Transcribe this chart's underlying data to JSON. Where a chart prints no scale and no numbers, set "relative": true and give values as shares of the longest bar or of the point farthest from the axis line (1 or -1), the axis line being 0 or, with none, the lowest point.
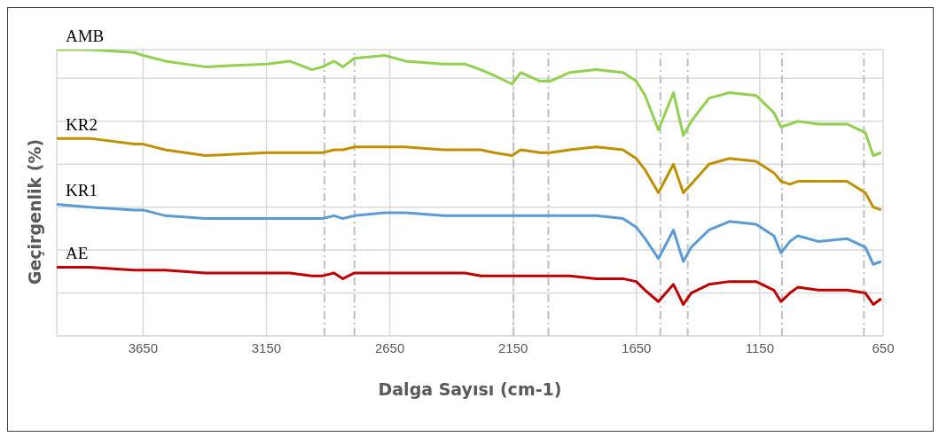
{
  "chart_data": {
    "type": "line",
    "xlabel": "Dalga Sayısı (cm-1)",
    "ylabel": "Geçirgenlik (%)",
    "relative": true,
    "x": [
      4000,
      3866,
      3686,
      3650,
      3560,
      3398,
      3146,
      3056,
      2966,
      2922,
      2876,
      2840,
      2793,
      2670,
      2587,
      2432,
      2346,
      2281,
      2227,
      2155,
      2119,
      2040,
      2000,
      1921,
      1813,
      1705,
      1651,
      1615,
      1561,
      1500,
      1460,
      1428,
      1356,
      1273,
      1165,
      1093,
      1064,
      1028,
      996,
      913,
      797,
      722,
      690,
      658
    ],
    "xlim": [
      4000,
      650
    ],
    "xticks": [
      3650,
      3150,
      2650,
      2150,
      1650,
      1150,
      650
    ],
    "series": [
      {
        "name": "AMB",
        "color": "#92d050",
        "values": [
          1.0,
          1.0,
          0.99,
          0.98,
          0.96,
          0.94,
          0.95,
          0.96,
          0.93,
          0.94,
          0.96,
          0.94,
          0.97,
          0.98,
          0.96,
          0.95,
          0.95,
          0.93,
          0.91,
          0.88,
          0.92,
          0.89,
          0.89,
          0.92,
          0.93,
          0.92,
          0.89,
          0.84,
          0.72,
          0.85,
          0.7,
          0.75,
          0.83,
          0.85,
          0.84,
          0.78,
          0.73,
          0.74,
          0.75,
          0.74,
          0.74,
          0.71,
          0.63,
          0.64
        ]
      },
      {
        "name": "KR2",
        "color": "#bf9000",
        "values": [
          0.69,
          0.69,
          0.67,
          0.67,
          0.65,
          0.63,
          0.64,
          0.64,
          0.64,
          0.64,
          0.65,
          0.65,
          0.66,
          0.66,
          0.66,
          0.65,
          0.65,
          0.65,
          0.64,
          0.63,
          0.65,
          0.64,
          0.64,
          0.65,
          0.66,
          0.65,
          0.62,
          0.58,
          0.5,
          0.6,
          0.5,
          0.53,
          0.6,
          0.62,
          0.61,
          0.57,
          0.54,
          0.53,
          0.54,
          0.54,
          0.54,
          0.5,
          0.45,
          0.44
        ]
      },
      {
        "name": "KR1",
        "color": "#5b9bd5",
        "values": [
          0.46,
          0.45,
          0.44,
          0.44,
          0.42,
          0.41,
          0.41,
          0.41,
          0.41,
          0.41,
          0.42,
          0.41,
          0.42,
          0.43,
          0.43,
          0.42,
          0.42,
          0.42,
          0.42,
          0.42,
          0.42,
          0.42,
          0.42,
          0.42,
          0.42,
          0.41,
          0.38,
          0.34,
          0.27,
          0.37,
          0.26,
          0.31,
          0.37,
          0.4,
          0.39,
          0.35,
          0.29,
          0.33,
          0.35,
          0.33,
          0.34,
          0.31,
          0.25,
          0.26
        ]
      },
      {
        "name": "AE",
        "color": "#c00000",
        "values": [
          0.24,
          0.24,
          0.23,
          0.23,
          0.23,
          0.22,
          0.22,
          0.22,
          0.21,
          0.21,
          0.22,
          0.2,
          0.22,
          0.22,
          0.22,
          0.22,
          0.22,
          0.21,
          0.21,
          0.21,
          0.21,
          0.21,
          0.21,
          0.21,
          0.2,
          0.2,
          0.19,
          0.16,
          0.12,
          0.18,
          0.11,
          0.15,
          0.18,
          0.19,
          0.19,
          0.16,
          0.12,
          0.15,
          0.17,
          0.16,
          0.16,
          0.15,
          0.11,
          0.13
        ]
      }
    ],
    "ref_lines": [
      {
        "axis": "x",
        "value": 2915,
        "color": "#bfbfbf",
        "line_style": "dashed"
      },
      {
        "axis": "x",
        "value": 2793,
        "color": "#bfbfbf",
        "line_style": "dashed"
      },
      {
        "axis": "x",
        "value": 2148,
        "color": "#bfbfbf",
        "line_style": "dashed"
      },
      {
        "axis": "x",
        "value": 2007,
        "color": "#bfbfbf",
        "line_style": "dashed"
      },
      {
        "axis": "x",
        "value": 1553,
        "color": "#bfbfbf",
        "line_style": "dashed"
      },
      {
        "axis": "x",
        "value": 1442,
        "color": "#bfbfbf",
        "line_style": "dashed"
      },
      {
        "axis": "x",
        "value": 1060,
        "color": "#bfbfbf",
        "line_style": "dashed"
      },
      {
        "axis": "x",
        "value": 728,
        "color": "#bfbfbf",
        "line_style": "dashed"
      }
    ],
    "grid": true,
    "legend": false,
    "marker": "none",
    "line_style": "solid"
  }
}
